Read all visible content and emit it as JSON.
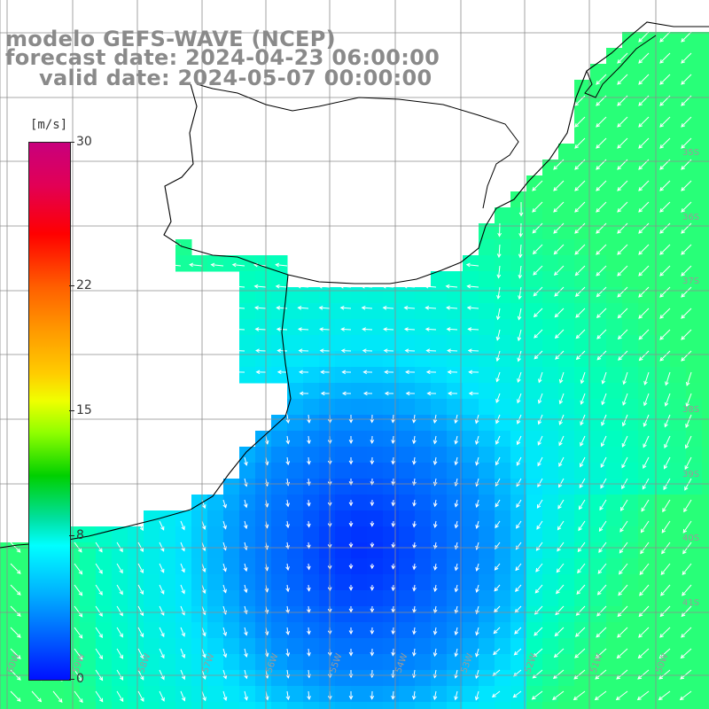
{
  "title": {
    "model": "modelo GEFS-WAVE (NCEP)",
    "forecast": "forecast date: 2024-04-23 06:00:00",
    "valid": "valid date: 2024-05-07 00:00:00"
  },
  "legend": {
    "unit": "[m/s]",
    "ticks": [
      {
        "label": "30",
        "value": 30
      },
      {
        "label": "22",
        "value": 22
      },
      {
        "label": "15",
        "value": 15
      },
      {
        "label": "8",
        "value": 8
      },
      {
        "label": "0",
        "value": 0
      }
    ],
    "min": 0,
    "max": 30
  },
  "map": {
    "ocean_colors": {
      "low": "#0010ff",
      "mid": "#0066ff",
      "high": "#00ffd0"
    },
    "land_color": "#ffffff",
    "coast_color": "#000000",
    "grid_color": "#8c8c8c",
    "lat_labels": [
      "35S",
      "36S",
      "37S",
      "38S",
      "39S",
      "40S",
      "41S"
    ],
    "lon_labels": [
      "60W",
      "59W",
      "58W",
      "57W",
      "56W",
      "55W",
      "54W",
      "53W",
      "52W",
      "51W",
      "50W"
    ]
  },
  "colors": {
    "title": "#8a8a8a",
    "arrow": "#ffffff"
  }
}
